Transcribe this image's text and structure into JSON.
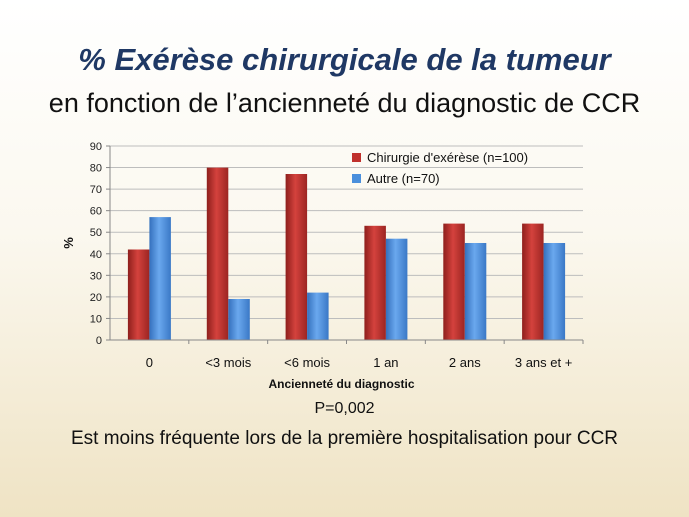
{
  "slide": {
    "title": "% Exérèse chirurgicale de la tumeur",
    "subtitle": "en fonction de l’ancienneté du diagnostic de CCR",
    "p_value": "P=0,002",
    "note": "Est moins fréquente lors de la première hospitalisation pour CCR"
  },
  "chart_data": {
    "type": "bar",
    "categories": [
      "0",
      "<3 mois",
      "<6 mois",
      "1 an",
      "2 ans",
      "3 ans et +"
    ],
    "series": [
      {
        "name": "Chirurgie d'exérèse (n=100)",
        "values": [
          42,
          80,
          77,
          53,
          54,
          54
        ],
        "color": "#c0302c"
      },
      {
        "name": "Autre (n=70)",
        "values": [
          57,
          19,
          22,
          47,
          45,
          45
        ],
        "color": "#4a8fdc"
      }
    ],
    "xlabel": "Ancienneté du diagnostic",
    "ylabel": "%",
    "ylim": [
      0,
      90
    ],
    "yticks": [
      0,
      10,
      20,
      30,
      40,
      50,
      60,
      70,
      80,
      90
    ],
    "grid": true,
    "legend_position": "top-right"
  }
}
